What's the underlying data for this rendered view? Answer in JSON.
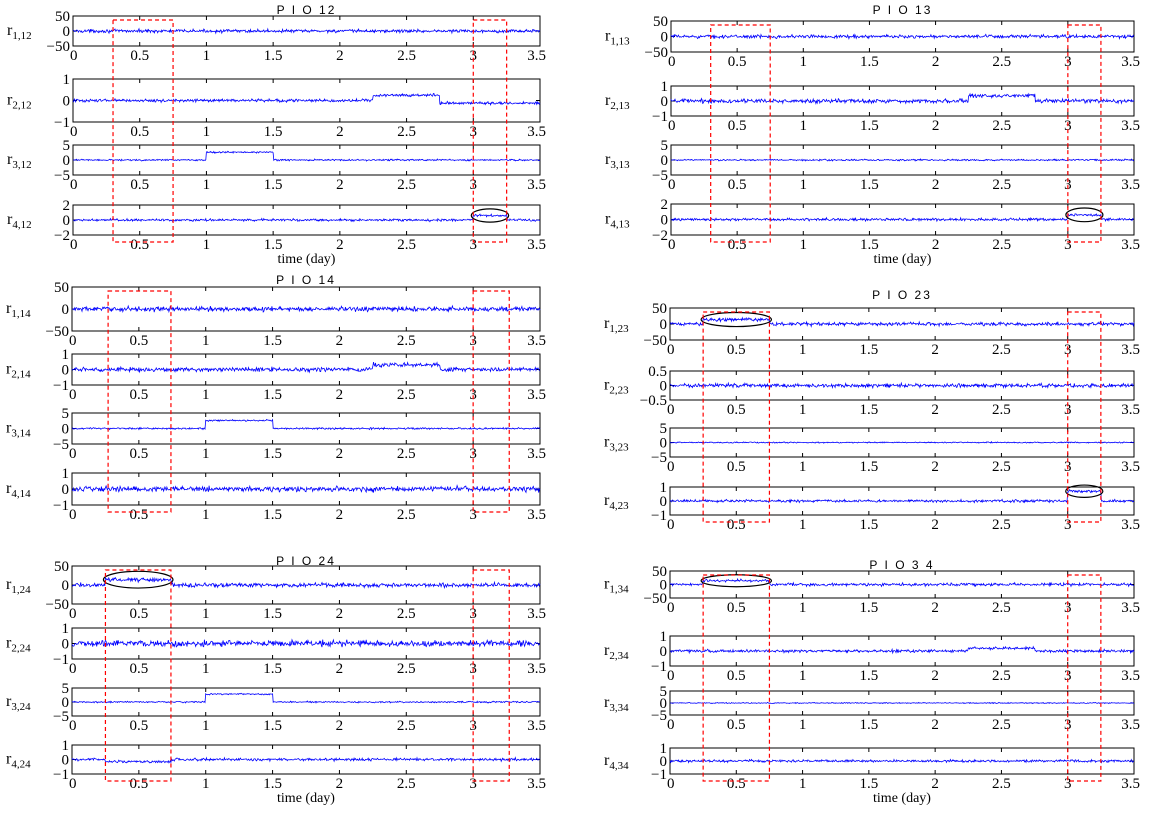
{
  "page": {
    "background": "#ffffff"
  },
  "style": {
    "trace_color": "#0000ff",
    "box_color": "#ff0000",
    "ellipse_color": "#000000",
    "axis_color": "#000000"
  },
  "chart_data": [
    {
      "type": "line",
      "title": "P I O 12",
      "xlabel": "time (day)",
      "x_ticks": [
        "0",
        "0.5",
        "1",
        "1.5",
        "2",
        "2.5",
        "3",
        "3.5"
      ],
      "xlim": [
        0,
        3.5
      ],
      "dashed_boxes": [
        [
          0.3,
          0.75
        ],
        [
          3.0,
          3.25
        ]
      ],
      "subplots": [
        {
          "ylabel": "r",
          "ysub": "1,12",
          "yticks": [
            "50",
            "0",
            "−50"
          ],
          "ylim": [
            -50,
            50
          ],
          "noise": 4,
          "steps": [],
          "ellipse": null
        },
        {
          "ylabel": "r",
          "ysub": "2,12",
          "yticks": [
            "1",
            "0",
            "−1"
          ],
          "ylim": [
            -1,
            1
          ],
          "noise": 0.05,
          "steps": [
            [
              1.0,
              1.5,
              0.0
            ],
            [
              2.25,
              2.75,
              0.25
            ],
            [
              2.75,
              3.5,
              -0.12
            ]
          ],
          "ellipse": null
        },
        {
          "ylabel": "r",
          "ysub": "3,12",
          "yticks": [
            "5",
            "0",
            "−5"
          ],
          "ylim": [
            -5,
            5
          ],
          "noise": 0.2,
          "steps": [
            [
              1.0,
              1.5,
              2.6
            ]
          ],
          "ellipse": null
        },
        {
          "ylabel": "r",
          "ysub": "4,12",
          "yticks": [
            "2",
            "0",
            "−2"
          ],
          "ylim": [
            -2,
            2
          ],
          "noise": 0.12,
          "steps": [
            [
              3.0,
              3.25,
              0.6
            ]
          ],
          "ellipse": [
            3.0,
            3.25
          ]
        }
      ]
    },
    {
      "type": "line",
      "title": "P I O 13",
      "xlabel": "time (day)",
      "x_ticks": [
        "0",
        "0.5",
        "1",
        "1.5",
        "2",
        "2.5",
        "3",
        "3.5"
      ],
      "xlim": [
        0,
        3.5
      ],
      "dashed_boxes": [
        [
          0.3,
          0.75
        ],
        [
          3.0,
          3.25
        ]
      ],
      "subplots": [
        {
          "ylabel": "r",
          "ysub": "1,13",
          "yticks": [
            "50",
            "0",
            "−50"
          ],
          "ylim": [
            -50,
            50
          ],
          "noise": 4,
          "steps": [],
          "ellipse": null
        },
        {
          "ylabel": "r",
          "ysub": "2,13",
          "yticks": [
            "1",
            "0",
            "−1"
          ],
          "ylim": [
            -1,
            1
          ],
          "noise": 0.1,
          "steps": [
            [
              2.25,
              2.75,
              0.35
            ]
          ],
          "ellipse": null
        },
        {
          "ylabel": "r",
          "ysub": "3,13",
          "yticks": [
            "5",
            "0",
            "−5"
          ],
          "ylim": [
            -5,
            5
          ],
          "noise": 0.2,
          "steps": [],
          "ellipse": null
        },
        {
          "ylabel": "r",
          "ysub": "4,13",
          "yticks": [
            "2",
            "0",
            "−2"
          ],
          "ylim": [
            -2,
            2
          ],
          "noise": 0.12,
          "steps": [
            [
              3.0,
              3.25,
              0.6
            ]
          ],
          "ellipse": [
            3.0,
            3.25
          ]
        }
      ]
    },
    {
      "type": "line",
      "title": "P I O 14",
      "xlabel": "",
      "x_ticks": [
        "0",
        "0.5",
        "1",
        "1.5",
        "2",
        "2.5",
        "3",
        "3.5"
      ],
      "xlim": [
        0,
        3.5
      ],
      "dashed_boxes": [
        [
          0.27,
          0.74
        ],
        [
          3.0,
          3.27
        ]
      ],
      "subplots": [
        {
          "ylabel": "r",
          "ysub": "1,14",
          "yticks": [
            "50",
            "0",
            "−50"
          ],
          "ylim": [
            -50,
            50
          ],
          "noise": 4,
          "steps": [],
          "ellipse": null
        },
        {
          "ylabel": "r",
          "ysub": "2,14",
          "yticks": [
            "1",
            "0",
            "−1"
          ],
          "ylim": [
            -1,
            1
          ],
          "noise": 0.1,
          "steps": [
            [
              2.25,
              2.75,
              0.3
            ]
          ],
          "ellipse": null
        },
        {
          "ylabel": "r",
          "ysub": "3,14",
          "yticks": [
            "5",
            "0",
            "−5"
          ],
          "ylim": [
            -5,
            5
          ],
          "noise": 0.2,
          "steps": [
            [
              1.0,
              1.5,
              2.6
            ]
          ],
          "ellipse": null
        },
        {
          "ylabel": "r",
          "ysub": "4,14",
          "yticks": [
            "1",
            "0",
            "−1"
          ],
          "ylim": [
            -1,
            1
          ],
          "noise": 0.12,
          "steps": [],
          "ellipse": null
        }
      ]
    },
    {
      "type": "line",
      "title": "P I O 23",
      "xlabel": "",
      "x_ticks": [
        "0",
        "0.5",
        "1",
        "1.5",
        "2",
        "2.5",
        "3",
        "3.5"
      ],
      "xlim": [
        0,
        3.5
      ],
      "dashed_boxes": [
        [
          0.25,
          0.75
        ],
        [
          3.0,
          3.25
        ]
      ],
      "subplots": [
        {
          "ylabel": "r",
          "ysub": "1,23",
          "yticks": [
            "50",
            "0",
            "−50"
          ],
          "ylim": [
            -50,
            50
          ],
          "noise": 4,
          "steps": [
            [
              0.25,
              0.75,
              14
            ]
          ],
          "ellipse": [
            0.25,
            0.75
          ]
        },
        {
          "ylabel": "r",
          "ysub": "2,23",
          "yticks": [
            "0.5",
            "0",
            "−0.5"
          ],
          "ylim": [
            -0.5,
            0.5
          ],
          "noise": 0.05,
          "steps": [],
          "ellipse": null
        },
        {
          "ylabel": "r",
          "ysub": "3,23",
          "yticks": [
            "5",
            "0",
            "−5"
          ],
          "ylim": [
            -5,
            5
          ],
          "noise": 0.15,
          "steps": [],
          "ellipse": null
        },
        {
          "ylabel": "r",
          "ysub": "4,23",
          "yticks": [
            "1",
            "0",
            "−1"
          ],
          "ylim": [
            -1,
            1
          ],
          "noise": 0.07,
          "steps": [
            [
              3.0,
              3.25,
              0.7
            ]
          ],
          "ellipse": [
            3.0,
            3.25
          ]
        }
      ]
    },
    {
      "type": "line",
      "title": "P I O 24",
      "xlabel": "time (day)",
      "x_ticks": [
        "0",
        "0.5",
        "1",
        "1.5",
        "2",
        "2.5",
        "3",
        "3.5"
      ],
      "xlim": [
        0,
        3.5
      ],
      "dashed_boxes": [
        [
          0.25,
          0.74
        ],
        [
          3.0,
          3.27
        ]
      ],
      "subplots": [
        {
          "ylabel": "r",
          "ysub": "1,24",
          "yticks": [
            "50",
            "0",
            "−50"
          ],
          "ylim": [
            -50,
            50
          ],
          "noise": 4,
          "steps": [
            [
              0.25,
              0.74,
              14
            ]
          ],
          "ellipse": [
            0.25,
            0.74
          ]
        },
        {
          "ylabel": "r",
          "ysub": "2,24",
          "yticks": [
            "1",
            "0",
            "−1"
          ],
          "ylim": [
            -1,
            1
          ],
          "noise": 0.15,
          "steps": [],
          "ellipse": null
        },
        {
          "ylabel": "r",
          "ysub": "3,24",
          "yticks": [
            "5",
            "0",
            "−5"
          ],
          "ylim": [
            -5,
            5
          ],
          "noise": 0.2,
          "steps": [
            [
              1.0,
              1.5,
              2.8
            ]
          ],
          "ellipse": null
        },
        {
          "ylabel": "r",
          "ysub": "4,24",
          "yticks": [
            "1",
            "0",
            "−1"
          ],
          "ylim": [
            -1,
            1
          ],
          "noise": 0.07,
          "steps": [
            [
              0.25,
              0.74,
              -0.15
            ]
          ],
          "ellipse": null
        }
      ]
    },
    {
      "type": "line",
      "title": "P I O 3 4",
      "xlabel": "time (day)",
      "x_ticks": [
        "0",
        "0.5",
        "1",
        "1.5",
        "2",
        "2.5",
        "3",
        "3.5"
      ],
      "xlim": [
        0,
        3.5
      ],
      "dashed_boxes": [
        [
          0.25,
          0.75
        ],
        [
          3.0,
          3.25
        ]
      ],
      "subplots": [
        {
          "ylabel": "r",
          "ysub": "1,34",
          "yticks": [
            "50",
            "0",
            "−50"
          ],
          "ylim": [
            -50,
            50
          ],
          "noise": 4,
          "steps": [
            [
              0.25,
              0.75,
              14
            ]
          ],
          "ellipse": [
            0.25,
            0.75
          ]
        },
        {
          "ylabel": "r",
          "ysub": "2,34",
          "yticks": [
            "1",
            "0",
            "−1"
          ],
          "ylim": [
            -1,
            1
          ],
          "noise": 0.07,
          "steps": [
            [
              2.25,
              2.75,
              0.18
            ]
          ],
          "ellipse": null
        },
        {
          "ylabel": "r",
          "ysub": "3,34",
          "yticks": [
            "5",
            "0",
            "−5"
          ],
          "ylim": [
            -5,
            5
          ],
          "noise": 0.15,
          "steps": [],
          "ellipse": null
        },
        {
          "ylabel": "r",
          "ysub": "4,34",
          "yticks": [
            "1",
            "0",
            "−1"
          ],
          "ylim": [
            -1,
            1
          ],
          "noise": 0.07,
          "steps": [],
          "ellipse": null
        }
      ]
    }
  ]
}
